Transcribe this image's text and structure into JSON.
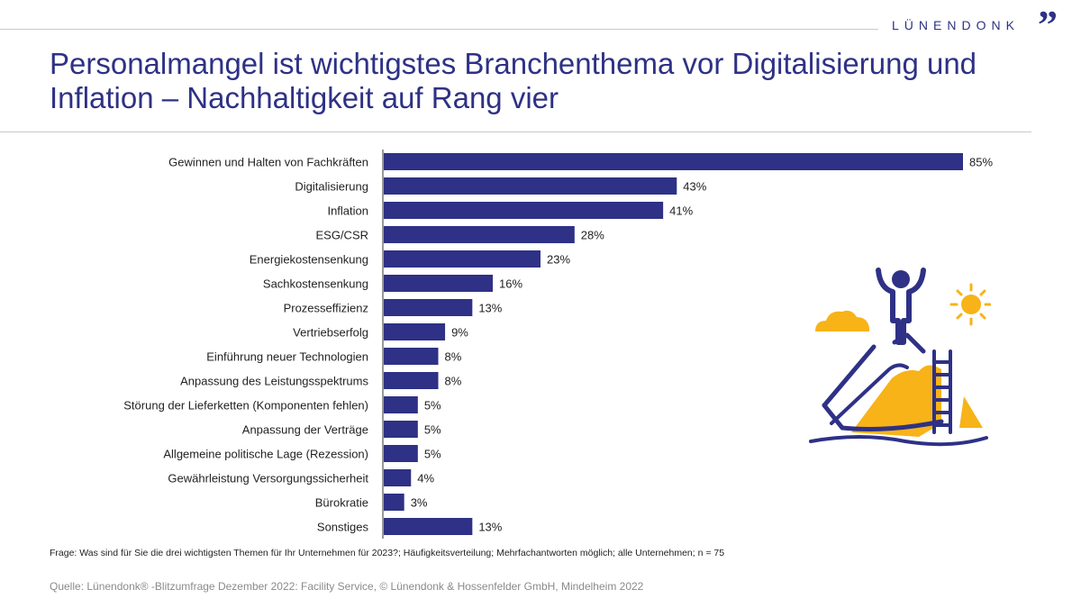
{
  "header": {
    "brand": "LÜNENDONK",
    "brand_mark": "”",
    "title": "Personalmangel ist wichtigstes Branchenthema vor Digitalisierung und Inflation – Nachhaltigkeit auf Rang vier"
  },
  "colors": {
    "bar": "#2e3185",
    "accent": "#f7b318",
    "text": "#222222"
  },
  "chart_data": {
    "type": "bar",
    "orientation": "horizontal",
    "title": "Personalmangel ist wichtigstes Branchenthema vor Digitalisierung und Inflation – Nachhaltigkeit auf Rang vier",
    "categories": [
      "Gewinnen und Halten von Fachkräften",
      "Digitalisierung",
      "Inflation",
      "ESG/CSR",
      "Energiekostensenkung",
      "Sachkostensenkung",
      "Prozesseffizienz",
      "Vertriebserfolg",
      "Einführung neuer Technologien",
      "Anpassung des Leistungsspektrums",
      "Störung der Lieferketten (Komponenten fehlen)",
      "Anpassung der Verträge",
      "Allgemeine politische Lage (Rezession)",
      "Gewährleistung Versorgungssicherheit",
      "Bürokratie",
      "Sonstiges"
    ],
    "values": [
      85,
      43,
      41,
      28,
      23,
      16,
      13,
      9,
      8,
      8,
      5,
      5,
      5,
      4,
      3,
      13
    ],
    "value_labels": [
      "85%",
      "43%",
      "41%",
      "28%",
      "23%",
      "16%",
      "13%",
      "9%",
      "8%",
      "8%",
      "5%",
      "5%",
      "5%",
      "4%",
      "3%",
      "13%"
    ],
    "unit": "%",
    "xlim": [
      0,
      85
    ],
    "xlabel": "",
    "ylabel": "",
    "grid": false
  },
  "footer": {
    "question": "Frage: Was sind für Sie die drei wichtigsten Themen für Ihr Unternehmen für 2023?; Häufigkeitsverteilung; Mehrfachantworten möglich; alle Unternehmen; n = 75",
    "source": "Quelle: Lünendonk® -Blitzumfrage Dezember 2022: Facility Service, © Lünendonk & Hossenfelder GmbH, Mindelheim 2022"
  },
  "illustration": {
    "icon": "mountain-summit-icon"
  }
}
